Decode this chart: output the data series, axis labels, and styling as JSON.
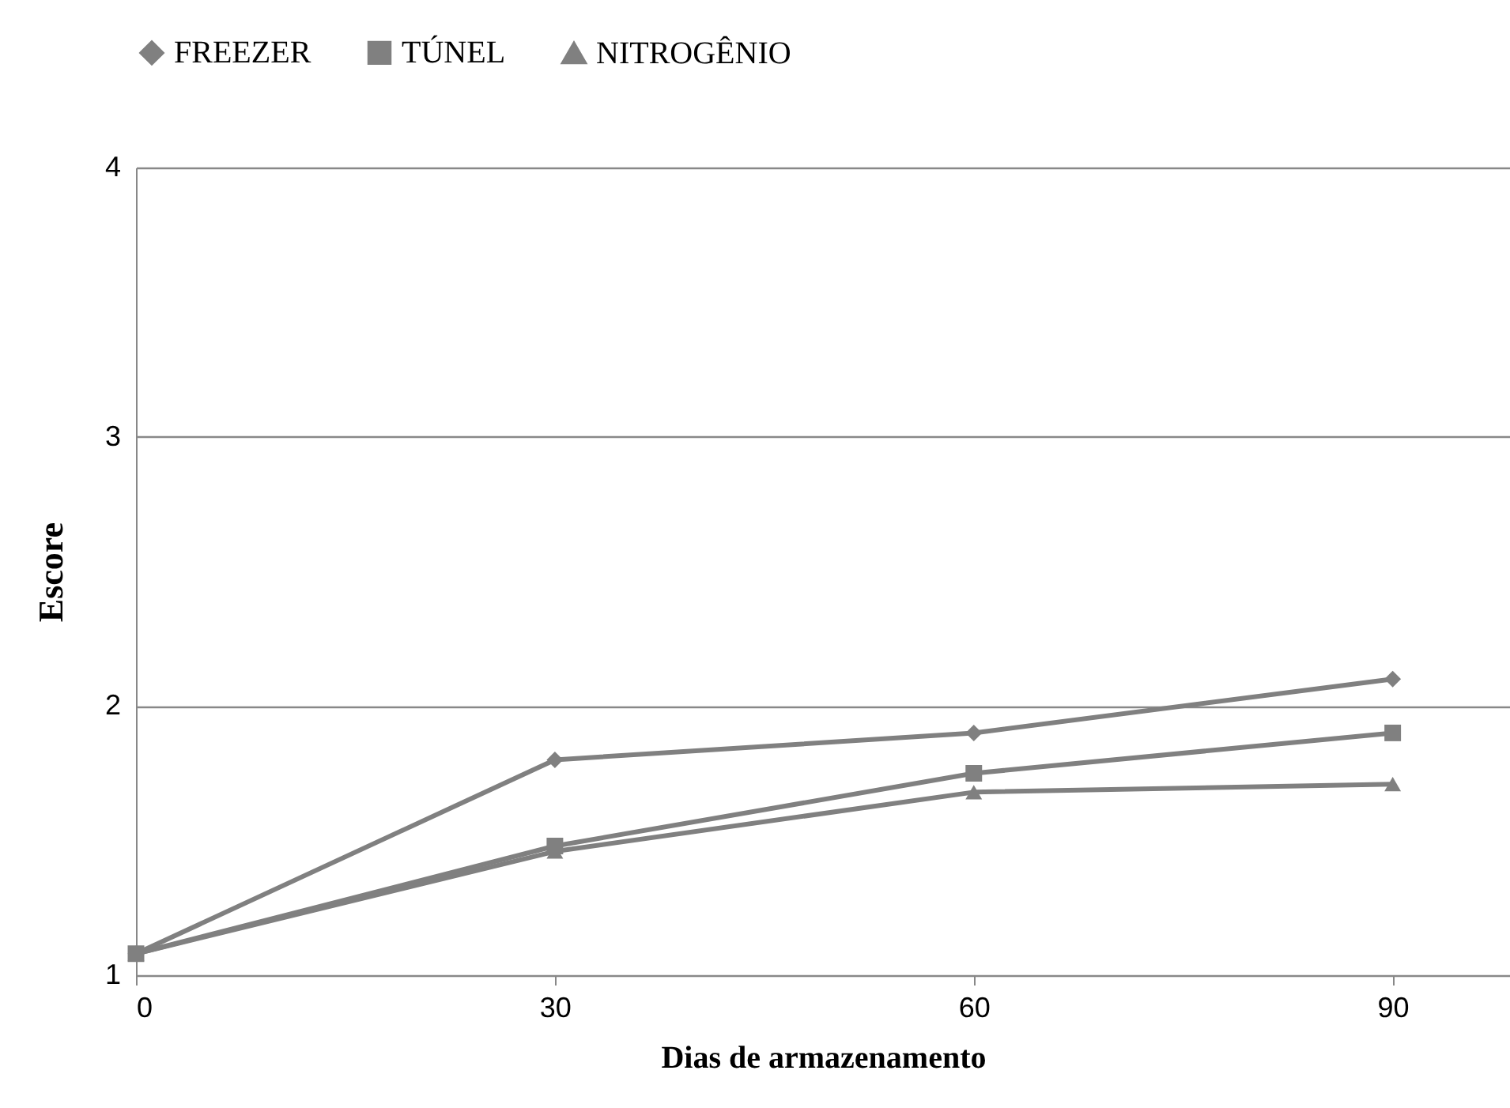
{
  "chart_data": {
    "type": "line",
    "xlabel": "Dias de armazenamento",
    "ylabel": "Escore",
    "x": [
      0,
      30,
      60,
      90
    ],
    "xlim": [
      0,
      98.4
    ],
    "xticks": [
      0,
      30,
      60,
      90
    ],
    "ylim": [
      1,
      4
    ],
    "yticks": [
      1,
      2,
      3,
      4
    ],
    "grid": "y",
    "legend": "top",
    "series": [
      {
        "name": "FREEZER",
        "color": "#808080",
        "marker": "diamond",
        "values": [
          1.08,
          1.8,
          1.9,
          2.1
        ]
      },
      {
        "name": "TÚNEL",
        "color": "#808080",
        "marker": "square",
        "values": [
          1.08,
          1.48,
          1.75,
          1.9
        ]
      },
      {
        "name": "NITROGÊNIO",
        "color": "#808080",
        "marker": "triangle",
        "values": [
          1.08,
          1.46,
          1.68,
          1.71
        ]
      }
    ]
  }
}
